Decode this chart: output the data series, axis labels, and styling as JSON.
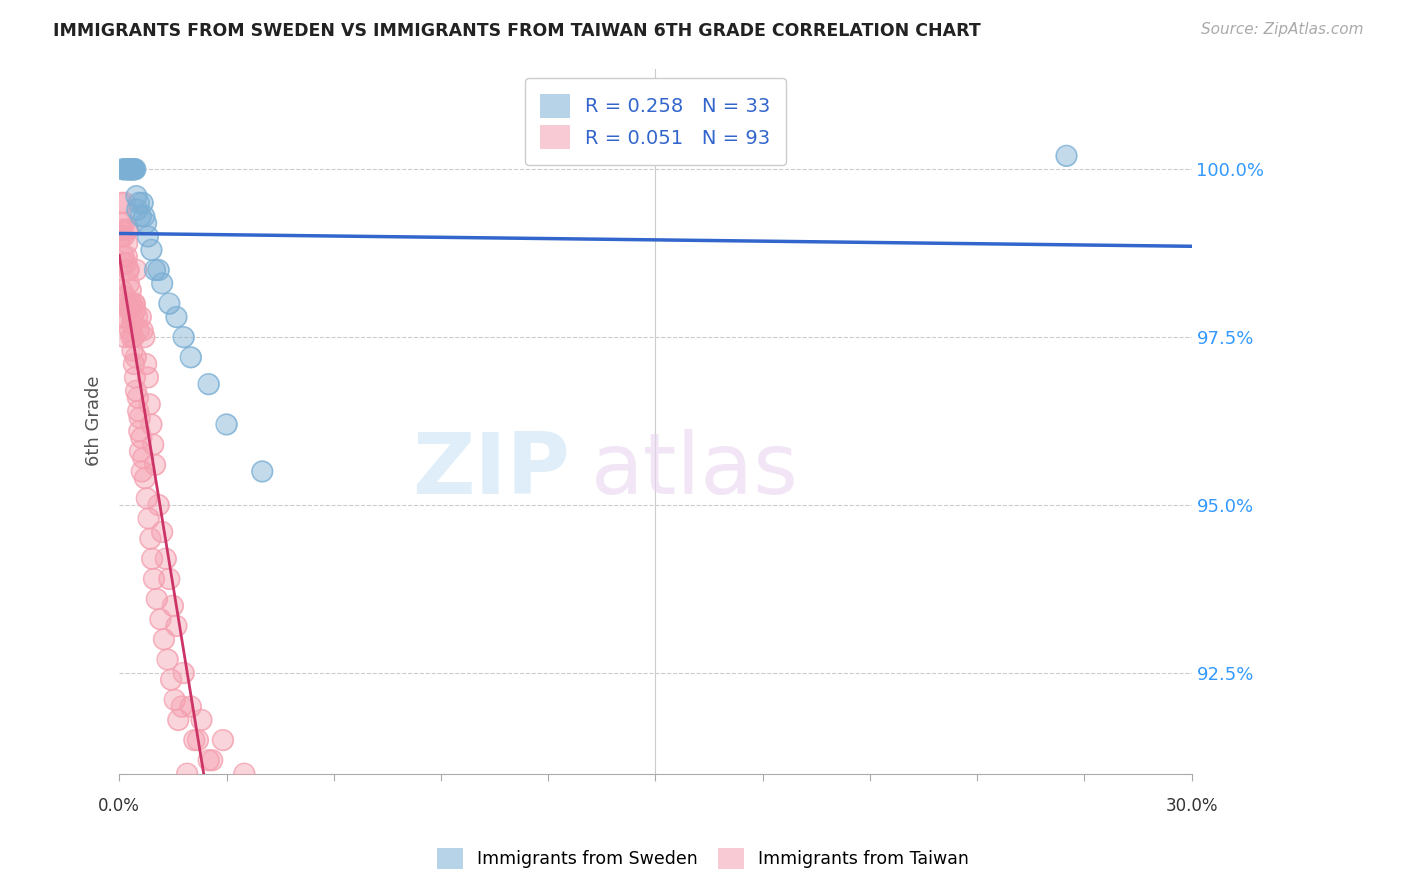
{
  "title": "IMMIGRANTS FROM SWEDEN VS IMMIGRANTS FROM TAIWAN 6TH GRADE CORRELATION CHART",
  "source": "Source: ZipAtlas.com",
  "ylabel": "6th Grade",
  "xlim": [
    0.0,
    30.0
  ],
  "ylim": [
    91.0,
    101.5
  ],
  "yticks": [
    92.5,
    95.0,
    97.5,
    100.0
  ],
  "ytick_labels": [
    "92.5%",
    "95.0%",
    "97.5%",
    "100.0%"
  ],
  "r_sweden": 0.258,
  "n_sweden": 33,
  "r_taiwan": 0.051,
  "n_taiwan": 93,
  "color_sweden": "#7BAFD4",
  "color_taiwan": "#F4A0B0",
  "sweden_x": [
    0.1,
    0.15,
    0.2,
    0.22,
    0.25,
    0.28,
    0.3,
    0.32,
    0.35,
    0.38,
    0.4,
    0.42,
    0.45,
    0.48,
    0.5,
    0.55,
    0.6,
    0.65,
    0.7,
    0.75,
    0.8,
    0.9,
    1.0,
    1.1,
    1.2,
    1.4,
    1.6,
    1.8,
    2.0,
    2.5,
    3.0,
    4.0,
    26.5
  ],
  "sweden_y": [
    100.0,
    100.0,
    100.0,
    100.0,
    100.0,
    100.0,
    100.0,
    100.0,
    100.0,
    100.0,
    100.0,
    100.0,
    100.0,
    99.6,
    99.4,
    99.5,
    99.3,
    99.5,
    99.3,
    99.2,
    99.0,
    98.8,
    98.5,
    98.5,
    98.3,
    98.0,
    97.8,
    97.5,
    97.2,
    96.8,
    96.2,
    95.5,
    100.2
  ],
  "taiwan_x": [
    0.05,
    0.06,
    0.07,
    0.08,
    0.09,
    0.1,
    0.11,
    0.12,
    0.14,
    0.15,
    0.16,
    0.17,
    0.18,
    0.19,
    0.2,
    0.22,
    0.24,
    0.26,
    0.28,
    0.3,
    0.32,
    0.35,
    0.38,
    0.4,
    0.42,
    0.45,
    0.48,
    0.5,
    0.55,
    0.6,
    0.65,
    0.7,
    0.75,
    0.8,
    0.85,
    0.9,
    0.95,
    1.0,
    1.1,
    1.2,
    1.3,
    1.4,
    1.5,
    1.6,
    1.8,
    2.0,
    2.2,
    2.5,
    0.03,
    0.04,
    0.13,
    0.21,
    0.23,
    0.25,
    0.27,
    0.29,
    0.33,
    0.36,
    0.43,
    0.46,
    0.52,
    0.57,
    0.62,
    0.67,
    0.72,
    0.77,
    0.82,
    0.87,
    0.92,
    0.97,
    1.05,
    1.15,
    1.25,
    1.35,
    1.45,
    1.55,
    1.65,
    1.75,
    1.9,
    2.1,
    2.3,
    2.6,
    2.9,
    0.34,
    0.37,
    0.41,
    0.44,
    0.47,
    0.53,
    0.56,
    0.58,
    0.63,
    3.5
  ],
  "taiwan_y": [
    99.5,
    99.0,
    98.2,
    99.1,
    97.8,
    98.0,
    98.6,
    98.7,
    99.2,
    99.5,
    97.5,
    98.1,
    97.8,
    98.0,
    98.6,
    98.9,
    99.1,
    98.5,
    97.9,
    97.6,
    98.2,
    98.0,
    97.8,
    97.5,
    98.0,
    97.9,
    98.5,
    97.8,
    97.6,
    97.8,
    97.6,
    97.5,
    97.1,
    96.9,
    96.5,
    96.2,
    95.9,
    95.6,
    95.0,
    94.6,
    94.2,
    93.9,
    93.5,
    93.2,
    92.5,
    92.0,
    91.5,
    91.2,
    99.2,
    99.0,
    99.0,
    98.7,
    99.1,
    98.5,
    98.3,
    97.9,
    98.0,
    97.7,
    98.0,
    97.2,
    96.6,
    96.3,
    96.0,
    95.7,
    95.4,
    95.1,
    94.8,
    94.5,
    94.2,
    93.9,
    93.6,
    93.3,
    93.0,
    92.7,
    92.4,
    92.1,
    91.8,
    92.0,
    91.0,
    91.5,
    91.8,
    91.2,
    91.5,
    97.5,
    97.3,
    97.1,
    96.9,
    96.7,
    96.4,
    96.1,
    95.8,
    95.5,
    91.0
  ],
  "trend_color_sweden": "#3366CC",
  "trend_color_taiwan": "#CC3366",
  "watermark_zip": "ZIP",
  "watermark_atlas": "atlas",
  "legend_label_sweden": "R = 0.258   N = 33",
  "legend_label_taiwan": "R = 0.051   N = 93",
  "legend_label_bot_sweden": "Immigrants from Sweden",
  "legend_label_bot_taiwan": "Immigrants from Taiwan"
}
